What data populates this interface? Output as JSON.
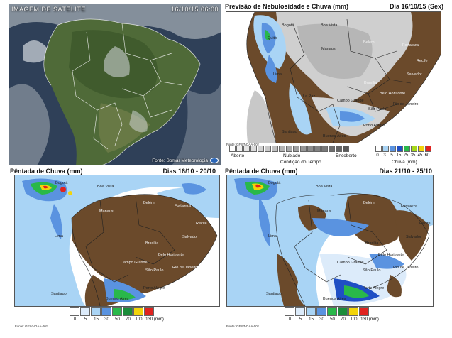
{
  "satellite": {
    "label": "IMAGEM DE SATÉLITE",
    "timestamp": "16/10/15 06:00",
    "source": "Fonte: Somar Meteorologia"
  },
  "forecast": {
    "title": "Previsão de Nebulosidade e Chuva (mm)",
    "date": "Dia 16/10/15 (Sex)",
    "cities": [
      "Bogotá",
      "Boa Vista",
      "Manaus",
      "Belém",
      "Fortaleza",
      "Recife",
      "Salvador",
      "Brasília",
      "Belo Horizonte",
      "Rio de Janeiro",
      "São Paulo",
      "Campo Grande",
      "Porto Alegre",
      "Buenos Aires",
      "Santiago",
      "Lima",
      "Quito",
      "La Paz"
    ],
    "cond_labels": {
      "left": "Aberto",
      "mid": "Nublado",
      "right": "Encoberto",
      "axis": "Condição do Tempo"
    },
    "rain_values": [
      "0",
      "3",
      "5",
      "15",
      "25",
      "35",
      "45",
      "60"
    ],
    "rain_axis": "Chuva (mm)",
    "source": "Fonte: GFS/NOAA-00z"
  },
  "pentada1": {
    "title": "Pêntada de Chuva (mm)",
    "date": "Dias 16/10 - 20/10",
    "source": "Fonte: GFS/NOAA-00z",
    "legend_values": [
      "0",
      "5",
      "15",
      "30",
      "50",
      "70",
      "100",
      "130 (mm)"
    ],
    "cities": [
      "Bogotá",
      "Boa Vista",
      "Manaus",
      "Belém",
      "Fortaleza",
      "Recife",
      "Salvador",
      "Brasília",
      "Belo Horizonte",
      "Campo Grande",
      "São Paulo",
      "Rio de Janeiro",
      "Porto Alegre",
      "Buenos Aires",
      "Santiago",
      "Lima"
    ]
  },
  "pentada2": {
    "title": "Pêntada de Chuva (mm)",
    "date": "Dias 21/10 - 25/10",
    "source": "Fonte: GFS/NOAA-00z",
    "legend_values": [
      "0",
      "5",
      "15",
      "30",
      "50",
      "70",
      "100",
      "130 (mm)"
    ],
    "cities": [
      "Bogotá",
      "Boa Vista",
      "Manaus",
      "Belém",
      "Fortaleza",
      "Recife",
      "Salvador",
      "Brasília",
      "Belo Horizonte",
      "Campo Grande",
      "São Paulo",
      "Rio de Janeiro",
      "Porto Alegre",
      "Buenos Aires",
      "Santiago",
      "Lima"
    ]
  },
  "colors": {
    "land_dry": "#6b4a2b",
    "cloud_light": "#d6d6d6",
    "cloud_mid": "#b8b8b8",
    "rain_light": "#a9d4f5",
    "rain_mid": "#5a93e0",
    "rain_heavy": "#1f4fc4",
    "rain_green": "#29b84a",
    "rain_yellow": "#f2d40a",
    "rain_red": "#e0231f",
    "sea": "#ffffff",
    "sat_ocean": "#2c3e55",
    "sat_land": "#5d7040"
  }
}
